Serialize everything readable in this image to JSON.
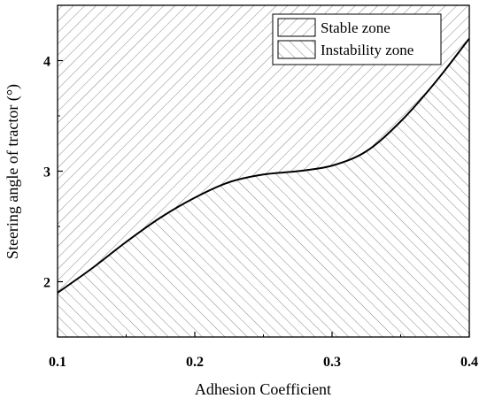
{
  "chart_data": {
    "type": "area",
    "xlabel": "Adhesion Coefficient",
    "ylabel": "Steering angle of tractor (°)",
    "xlim": [
      0.1,
      0.4
    ],
    "ylim": [
      1.5,
      4.5
    ],
    "xticks": [
      0.1,
      0.2,
      0.3,
      0.4
    ],
    "xtick_labels": [
      "0.1",
      "0.2",
      "0.3",
      "0.4"
    ],
    "yticks": [
      2,
      3,
      4
    ],
    "ytick_labels": [
      "2",
      "3",
      "4"
    ],
    "grid": false,
    "legend_position": "top-right",
    "boundary_curve": {
      "x": [
        0.1,
        0.125,
        0.15,
        0.175,
        0.2,
        0.225,
        0.25,
        0.275,
        0.3,
        0.325,
        0.35,
        0.375,
        0.4
      ],
      "y": [
        1.9,
        2.12,
        2.36,
        2.58,
        2.76,
        2.9,
        2.97,
        3.0,
        3.05,
        3.18,
        3.45,
        3.8,
        4.2
      ]
    },
    "series": [
      {
        "name": "Stable zone",
        "region": "above-curve",
        "hatch": "diagonal-up"
      },
      {
        "name": "Instability zone",
        "region": "below-curve",
        "hatch": "diagonal-down"
      }
    ]
  }
}
